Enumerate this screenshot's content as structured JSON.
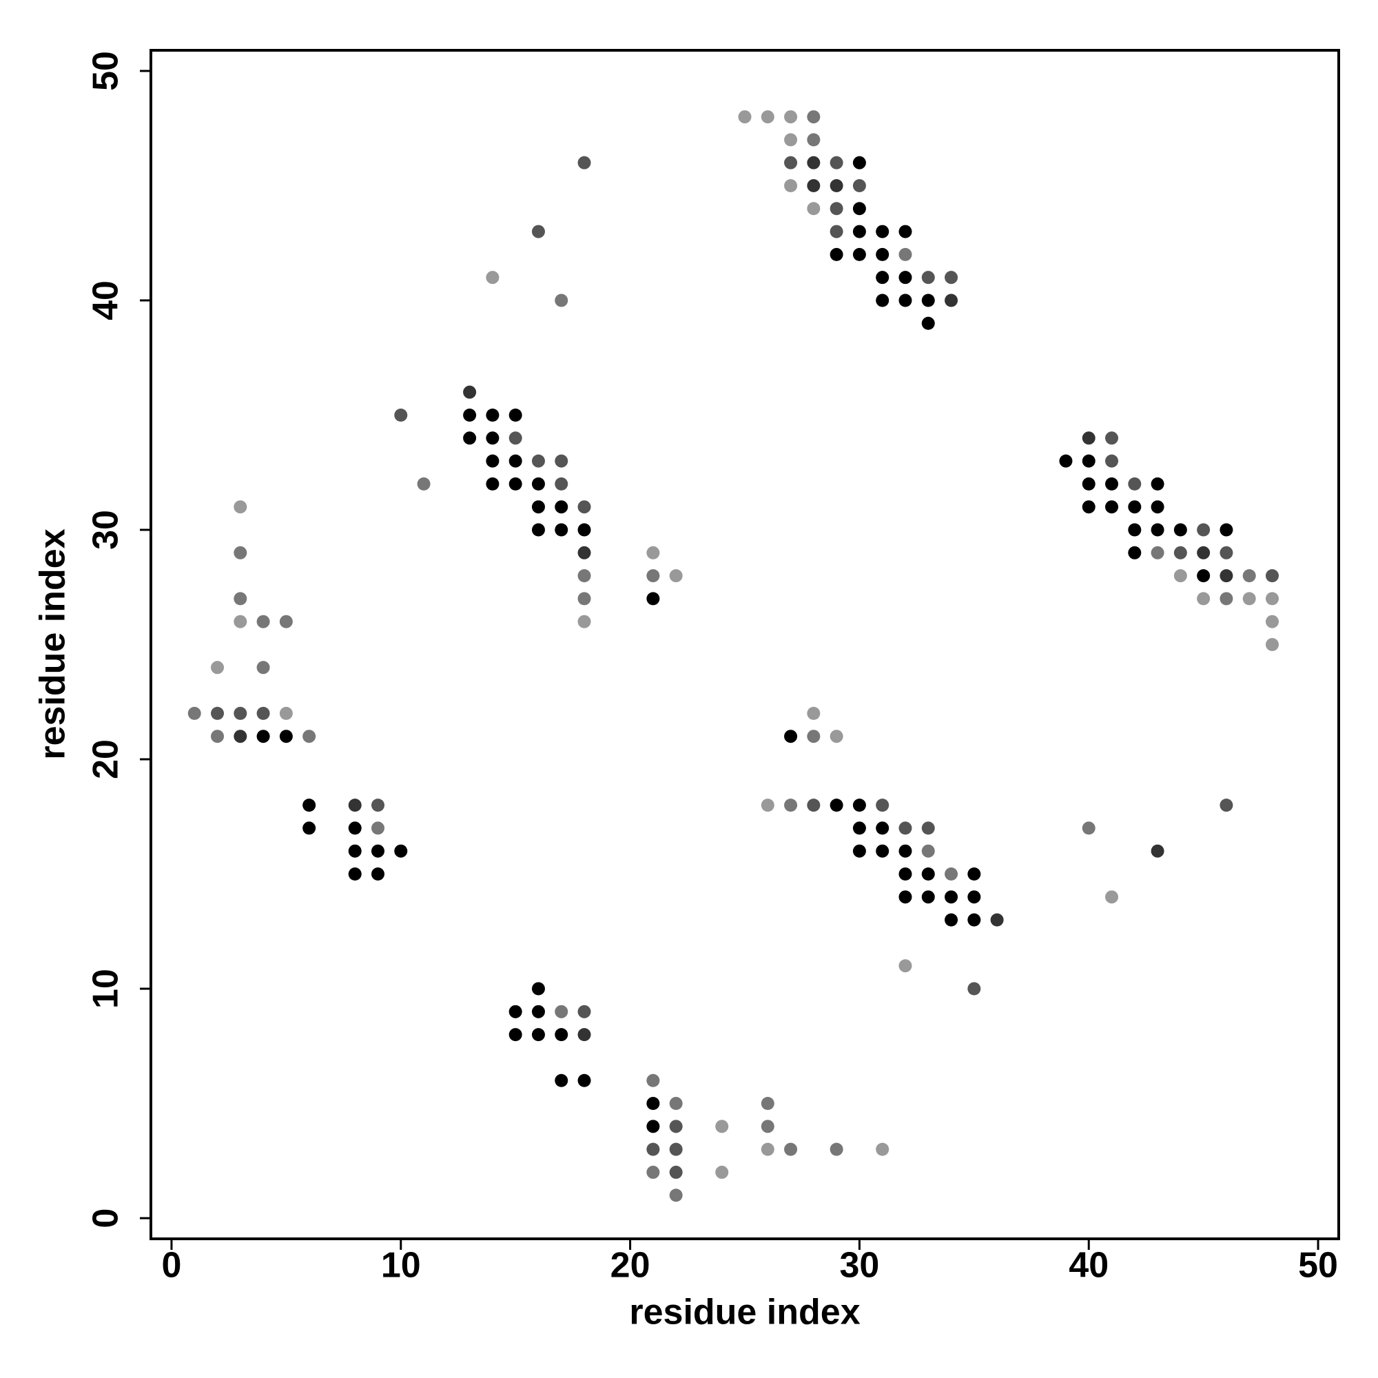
{
  "chart_data": {
    "type": "scatter",
    "xlabel": "residue index",
    "ylabel": "residue index",
    "xlim": [
      -0.9,
      50.9
    ],
    "ylim": [
      -0.9,
      50.9
    ],
    "xticks": [
      0,
      10,
      20,
      30,
      40,
      50
    ],
    "yticks": [
      0,
      10,
      20,
      30,
      40,
      50
    ],
    "x": [
      25,
      26,
      27,
      28,
      27,
      28,
      18,
      27,
      28,
      29,
      30,
      27,
      28,
      29,
      30,
      28,
      29,
      30,
      16,
      29,
      30,
      31,
      32,
      29,
      30,
      31,
      32,
      14,
      31,
      32,
      33,
      34,
      17,
      31,
      32,
      33,
      34,
      33,
      13,
      10,
      13,
      14,
      15,
      13,
      14,
      15,
      40,
      41,
      14,
      15,
      16,
      17,
      39,
      40,
      41,
      11,
      14,
      15,
      16,
      17,
      40,
      41,
      42,
      43,
      3,
      16,
      17,
      18,
      40,
      41,
      42,
      43,
      16,
      17,
      18,
      42,
      43,
      44,
      45,
      46,
      3,
      18,
      21,
      42,
      43,
      44,
      45,
      46,
      18,
      21,
      22,
      44,
      45,
      46,
      47,
      48,
      3,
      18,
      21,
      45,
      46,
      47,
      48,
      3,
      4,
      5,
      18,
      48,
      48,
      2,
      4,
      1,
      2,
      3,
      4,
      5,
      28,
      2,
      3,
      4,
      5,
      6,
      27,
      28,
      29,
      6,
      8,
      9,
      26,
      27,
      28,
      29,
      30,
      31,
      46,
      6,
      8,
      9,
      30,
      31,
      32,
      33,
      40,
      8,
      9,
      10,
      30,
      31,
      32,
      33,
      43,
      8,
      9,
      32,
      33,
      34,
      35,
      32,
      33,
      34,
      35,
      41,
      34,
      35,
      36,
      32,
      16,
      35,
      15,
      16,
      17,
      18,
      15,
      16,
      17,
      18,
      17,
      18,
      21,
      21,
      22,
      26,
      21,
      22,
      24,
      26,
      21,
      22,
      26,
      27,
      29,
      31,
      21,
      22,
      24,
      22
    ],
    "values": [
      48,
      48,
      48,
      48,
      47,
      47,
      46,
      46,
      46,
      46,
      46,
      45,
      45,
      45,
      45,
      44,
      44,
      44,
      43,
      43,
      43,
      43,
      43,
      42,
      42,
      42,
      42,
      41,
      41,
      41,
      41,
      41,
      40,
      40,
      40,
      40,
      40,
      39,
      36,
      35,
      35,
      35,
      35,
      34,
      34,
      34,
      34,
      34,
      33,
      33,
      33,
      33,
      33,
      33,
      33,
      32,
      32,
      32,
      32,
      32,
      32,
      32,
      32,
      32,
      31,
      31,
      31,
      31,
      31,
      31,
      31,
      31,
      30,
      30,
      30,
      30,
      30,
      30,
      30,
      30,
      29,
      29,
      29,
      29,
      29,
      29,
      29,
      29,
      28,
      28,
      28,
      28,
      28,
      28,
      28,
      28,
      27,
      27,
      27,
      27,
      27,
      27,
      27,
      26,
      26,
      26,
      26,
      26,
      25,
      24,
      24,
      22,
      22,
      22,
      22,
      22,
      22,
      21,
      21,
      21,
      21,
      21,
      21,
      21,
      21,
      18,
      18,
      18,
      18,
      18,
      18,
      18,
      18,
      18,
      18,
      17,
      17,
      17,
      17,
      17,
      17,
      17,
      17,
      16,
      16,
      16,
      16,
      16,
      16,
      16,
      16,
      15,
      15,
      15,
      15,
      15,
      15,
      14,
      14,
      14,
      14,
      14,
      13,
      13,
      13,
      11,
      10,
      10,
      9,
      9,
      9,
      9,
      8,
      8,
      8,
      8,
      6,
      6,
      6,
      5,
      5,
      5,
      4,
      4,
      4,
      4,
      3,
      3,
      3,
      3,
      3,
      3,
      2,
      2,
      2,
      1
    ],
    "colors": [
      "#999999",
      "#999999",
      "#999999",
      "#777777",
      "#999999",
      "#777777",
      "#555555",
      "#555555",
      "#333333",
      "#555555",
      "#000000",
      "#999999",
      "#333333",
      "#333333",
      "#555555",
      "#999999",
      "#555555",
      "#000000",
      "#555555",
      "#555555",
      "#000000",
      "#000000",
      "#000000",
      "#000000",
      "#000000",
      "#000000",
      "#777777",
      "#999999",
      "#000000",
      "#000000",
      "#555555",
      "#555555",
      "#777777",
      "#000000",
      "#000000",
      "#000000",
      "#333333",
      "#000000",
      "#333333",
      "#555555",
      "#000000",
      "#000000",
      "#000000",
      "#000000",
      "#000000",
      "#555555",
      "#333333",
      "#555555",
      "#000000",
      "#000000",
      "#555555",
      "#555555",
      "#000000",
      "#000000",
      "#555555",
      "#777777",
      "#000000",
      "#000000",
      "#000000",
      "#555555",
      "#000000",
      "#000000",
      "#555555",
      "#000000",
      "#999999",
      "#000000",
      "#000000",
      "#555555",
      "#000000",
      "#000000",
      "#000000",
      "#000000",
      "#000000",
      "#000000",
      "#000000",
      "#000000",
      "#000000",
      "#000000",
      "#555555",
      "#000000",
      "#777777",
      "#333333",
      "#999999",
      "#000000",
      "#777777",
      "#555555",
      "#333333",
      "#555555",
      "#777777",
      "#777777",
      "#999999",
      "#999999",
      "#000000",
      "#333333",
      "#777777",
      "#555555",
      "#777777",
      "#777777",
      "#000000",
      "#999999",
      "#777777",
      "#999999",
      "#999999",
      "#999999",
      "#777777",
      "#777777",
      "#999999",
      "#999999",
      "#999999",
      "#999999",
      "#777777",
      "#777777",
      "#555555",
      "#555555",
      "#555555",
      "#999999",
      "#999999",
      "#777777",
      "#333333",
      "#000000",
      "#000000",
      "#777777",
      "#000000",
      "#777777",
      "#999999",
      "#000000",
      "#333333",
      "#555555",
      "#999999",
      "#777777",
      "#555555",
      "#000000",
      "#000000",
      "#555555",
      "#555555",
      "#000000",
      "#000000",
      "#777777",
      "#000000",
      "#000000",
      "#555555",
      "#555555",
      "#777777",
      "#000000",
      "#000000",
      "#000000",
      "#000000",
      "#000000",
      "#000000",
      "#777777",
      "#333333",
      "#000000",
      "#000000",
      "#000000",
      "#000000",
      "#777777",
      "#000000",
      "#000000",
      "#000000",
      "#000000",
      "#000000",
      "#999999",
      "#000000",
      "#000000",
      "#333333",
      "#999999",
      "#000000",
      "#555555",
      "#000000",
      "#000000",
      "#777777",
      "#555555",
      "#000000",
      "#000000",
      "#000000",
      "#333333",
      "#000000",
      "#000000",
      "#777777",
      "#000000",
      "#777777",
      "#777777",
      "#000000",
      "#555555",
      "#999999",
      "#777777",
      "#555555",
      "#555555",
      "#999999",
      "#777777",
      "#777777",
      "#999999",
      "#777777",
      "#555555",
      "#999999",
      "#777777"
    ]
  }
}
